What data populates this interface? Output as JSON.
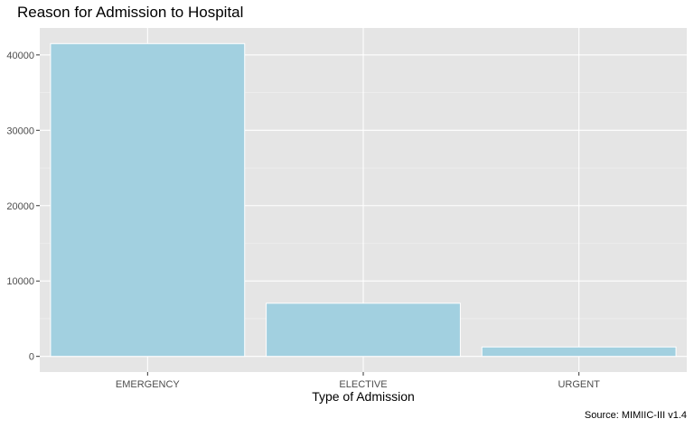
{
  "chart_data": {
    "type": "bar",
    "title": "Reason for Admission to Hospital",
    "xlabel": "Type of Admission",
    "ylabel": "",
    "caption": "Source: MIMIIC-III v1.4",
    "categories": [
      "EMERGENCY",
      "ELECTIVE",
      "URGENT"
    ],
    "values": [
      41500,
      7050,
      1250
    ],
    "ylim": [
      -2075,
      43575
    ],
    "yticks": [
      0,
      10000,
      20000,
      30000,
      40000
    ],
    "ytick_labels": [
      "0",
      "10000",
      "20000",
      "30000",
      "40000"
    ],
    "grid": true,
    "bar_color": "#a2d0e0",
    "panel_background": "#e5e5e5",
    "legend": "none"
  }
}
